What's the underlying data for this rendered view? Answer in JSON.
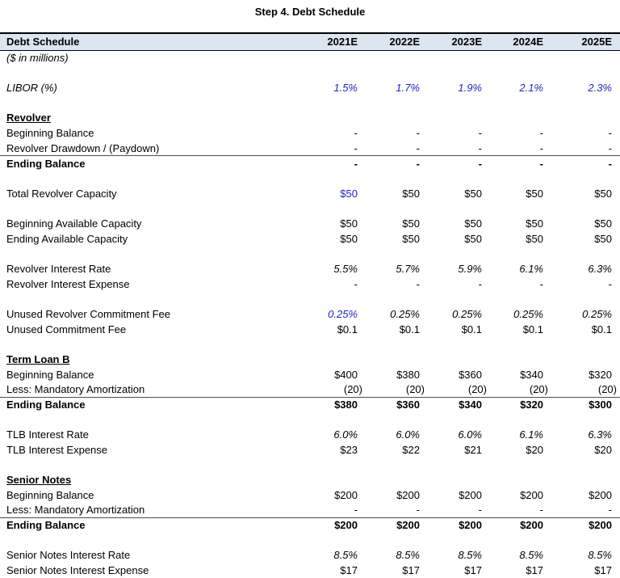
{
  "title": "Step 4. Debt Schedule",
  "colors": {
    "accent_blue": "#2222CC",
    "header_bg": "#DCE6F1",
    "border_dark": "#000000",
    "rule_gray": "#4d4d4d"
  },
  "table": {
    "header": {
      "label": "Debt Schedule",
      "years": [
        "2021E",
        "2022E",
        "2023E",
        "2024E",
        "2025E"
      ]
    },
    "rows": [
      {
        "label": "($ in millions)",
        "italicLabel": true,
        "values": [
          "",
          "",
          "",
          "",
          ""
        ]
      },
      {
        "blank": true
      },
      {
        "label": "LIBOR (%)",
        "italicLabel": true,
        "italicValues": true,
        "blue": [
          0,
          1,
          2,
          3,
          4
        ],
        "values": [
          "1.5%",
          "1.7%",
          "1.9%",
          "2.1%",
          "2.3%"
        ]
      },
      {
        "blank": true
      },
      {
        "label": "Revolver",
        "section": true,
        "values": [
          "",
          "",
          "",
          "",
          ""
        ]
      },
      {
        "label": "Beginning Balance",
        "values": [
          "-",
          "-",
          "-",
          "-",
          "-"
        ]
      },
      {
        "label": "Revolver Drawdown / (Paydown)",
        "bottomBorder": true,
        "values": [
          "-",
          "-",
          "-",
          "-",
          "-"
        ]
      },
      {
        "label": "Ending Balance",
        "bold": true,
        "values": [
          "-",
          "-",
          "-",
          "-",
          "-"
        ]
      },
      {
        "blank": true
      },
      {
        "label": "Total Revolver Capacity",
        "blue": [
          0
        ],
        "values": [
          "$50",
          "$50",
          "$50",
          "$50",
          "$50"
        ]
      },
      {
        "blank": true
      },
      {
        "label": "Beginning Available Capacity",
        "values": [
          "$50",
          "$50",
          "$50",
          "$50",
          "$50"
        ]
      },
      {
        "label": "Ending Available Capacity",
        "values": [
          "$50",
          "$50",
          "$50",
          "$50",
          "$50"
        ]
      },
      {
        "blank": true
      },
      {
        "label": "Revolver Interest Rate",
        "italicValues": true,
        "values": [
          "5.5%",
          "5.7%",
          "5.9%",
          "6.1%",
          "6.3%"
        ]
      },
      {
        "label": "Revolver Interest Expense",
        "values": [
          "-",
          "-",
          "-",
          "-",
          "-"
        ]
      },
      {
        "blank": true
      },
      {
        "label": "Unused Revolver Commitment Fee",
        "italicValues": true,
        "blue": [
          0
        ],
        "values": [
          "0.25%",
          "0.25%",
          "0.25%",
          "0.25%",
          "0.25%"
        ]
      },
      {
        "label": "Unused Commitment Fee",
        "values": [
          "$0.1",
          "$0.1",
          "$0.1",
          "$0.1",
          "$0.1"
        ]
      },
      {
        "blank": true
      },
      {
        "label": "Term Loan B",
        "section": true,
        "values": [
          "",
          "",
          "",
          "",
          ""
        ]
      },
      {
        "label": "Beginning Balance",
        "values": [
          "$400",
          "$380",
          "$360",
          "$340",
          "$320"
        ]
      },
      {
        "label": "Less: Mandatory Amortization",
        "bottomBorder": true,
        "values": [
          "(20)",
          "(20)",
          "(20)",
          "(20)",
          "(20)"
        ]
      },
      {
        "label": "Ending Balance",
        "bold": true,
        "values": [
          "$380",
          "$360",
          "$340",
          "$320",
          "$300"
        ]
      },
      {
        "blank": true
      },
      {
        "label": "TLB Interest Rate",
        "italicValues": true,
        "values": [
          "6.0%",
          "6.0%",
          "6.0%",
          "6.1%",
          "6.3%"
        ]
      },
      {
        "label": "TLB Interest Expense",
        "values": [
          "$23",
          "$22",
          "$21",
          "$20",
          "$20"
        ]
      },
      {
        "blank": true
      },
      {
        "label": "Senior Notes",
        "section": true,
        "values": [
          "",
          "",
          "",
          "",
          ""
        ]
      },
      {
        "label": "Beginning Balance",
        "values": [
          "$200",
          "$200",
          "$200",
          "$200",
          "$200"
        ]
      },
      {
        "label": "Less: Mandatory Amortization",
        "bottomBorder": true,
        "values": [
          "-",
          "-",
          "-",
          "-",
          "-"
        ]
      },
      {
        "label": "Ending Balance",
        "bold": true,
        "values": [
          "$200",
          "$200",
          "$200",
          "$200",
          "$200"
        ]
      },
      {
        "blank": true
      },
      {
        "label": "Senior Notes Interest Rate",
        "italicValues": true,
        "values": [
          "8.5%",
          "8.5%",
          "8.5%",
          "8.5%",
          "8.5%"
        ]
      },
      {
        "label": "Senior Notes Interest Expense",
        "values": [
          "$17",
          "$17",
          "$17",
          "$17",
          "$17"
        ]
      }
    ]
  }
}
